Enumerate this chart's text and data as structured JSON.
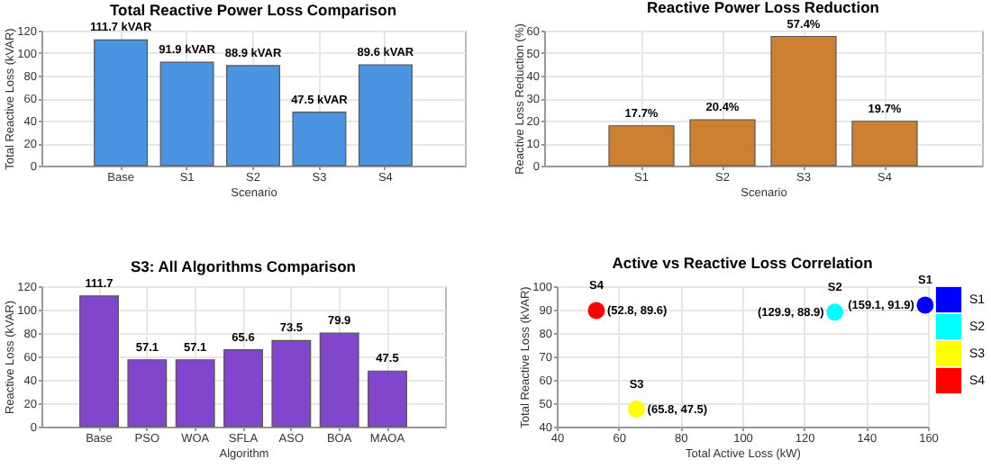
{
  "chart_data": [
    {
      "type": "bar",
      "title": "Total Reactive Power Loss Comparison",
      "xlabel": "Scenario",
      "ylabel": "Total Reactive Loss (kVAR)",
      "categories": [
        "Base",
        "S1",
        "S2",
        "S3",
        "S4"
      ],
      "values": [
        111.7,
        91.9,
        88.9,
        47.5,
        89.6
      ],
      "value_labels": [
        "111.7 kVAR",
        "91.9 kVAR",
        "88.9 kVAR",
        "47.5 kVAR",
        "89.6 kVAR"
      ],
      "color": "#4a94e2",
      "ylim": [
        0,
        120
      ],
      "yticks": [
        0,
        20,
        40,
        60,
        80,
        100,
        120
      ],
      "grid": true
    },
    {
      "type": "bar",
      "title": "Reactive Power Loss Reduction",
      "xlabel": "Scenario",
      "ylabel": "Reactive Loss Reduction (%)",
      "categories": [
        "S1",
        "S2",
        "S3",
        "S4"
      ],
      "values": [
        17.7,
        20.4,
        57.4,
        19.7
      ],
      "value_labels": [
        "17.7%",
        "20.4%",
        "57.4%",
        "19.7%"
      ],
      "color": "#cd7f32",
      "ylim": [
        0,
        60
      ],
      "yticks": [
        0,
        10,
        20,
        30,
        40,
        50,
        60
      ],
      "grid": true
    },
    {
      "type": "bar",
      "title": "S3: All Algorithms Comparison",
      "xlabel": "Algorithm",
      "ylabel": "Reactive Loss (kVAR)",
      "categories": [
        "Base",
        "PSO",
        "WOA",
        "SFLA",
        "ASO",
        "BOA",
        "MAOA"
      ],
      "values": [
        111.7,
        57.1,
        57.1,
        65.6,
        73.5,
        79.9,
        47.5
      ],
      "data_labels": true,
      "color": "#8046cc",
      "ylim": [
        0,
        120
      ],
      "yticks": [
        0,
        20,
        40,
        60,
        80,
        100,
        120
      ],
      "grid": true
    },
    {
      "type": "scatter",
      "title": "Active vs Reactive Loss Correlation",
      "xlabel": "Total Active Loss (kW)",
      "ylabel": "Total Reactive Loss (kVAR)",
      "series": [
        {
          "name": "S1",
          "color": "#0000ff",
          "x": [
            159.1
          ],
          "values": [
            91.9
          ]
        },
        {
          "name": "S2",
          "color": "#00ffff",
          "x": [
            129.9
          ],
          "values": [
            88.9
          ]
        },
        {
          "name": "S3",
          "color": "#ffff00",
          "x": [
            65.8
          ],
          "values": [
            47.5
          ]
        },
        {
          "name": "S4",
          "color": "#ff0000",
          "x": [
            52.8
          ],
          "values": [
            89.6
          ]
        }
      ],
      "legend": "right",
      "xlim": [
        40,
        160
      ],
      "xticks": [
        40,
        60,
        80,
        100,
        120,
        140,
        160
      ],
      "ylim": [
        40,
        100
      ],
      "yticks": [
        40,
        50,
        60,
        70,
        80,
        90,
        100
      ],
      "grid": true,
      "annotations": [
        {
          "text": "S1",
          "x": 159.1,
          "y": 91.9
        },
        {
          "text": "(159.1, 91.9)",
          "x": 159.1,
          "y": 91.9
        },
        {
          "text": "S2",
          "x": 129.9,
          "y": 88.9
        },
        {
          "text": "(129.9, 88.9)",
          "x": 129.9,
          "y": 88.9
        },
        {
          "text": "S3",
          "x": 65.8,
          "y": 47.5
        },
        {
          "text": "(65.8, 47.5)",
          "x": 65.8,
          "y": 47.5
        },
        {
          "text": "S4",
          "x": 52.8,
          "y": 89.6
        },
        {
          "text": "(52.8, 89.6)",
          "x": 52.8,
          "y": 89.6
        }
      ]
    }
  ]
}
